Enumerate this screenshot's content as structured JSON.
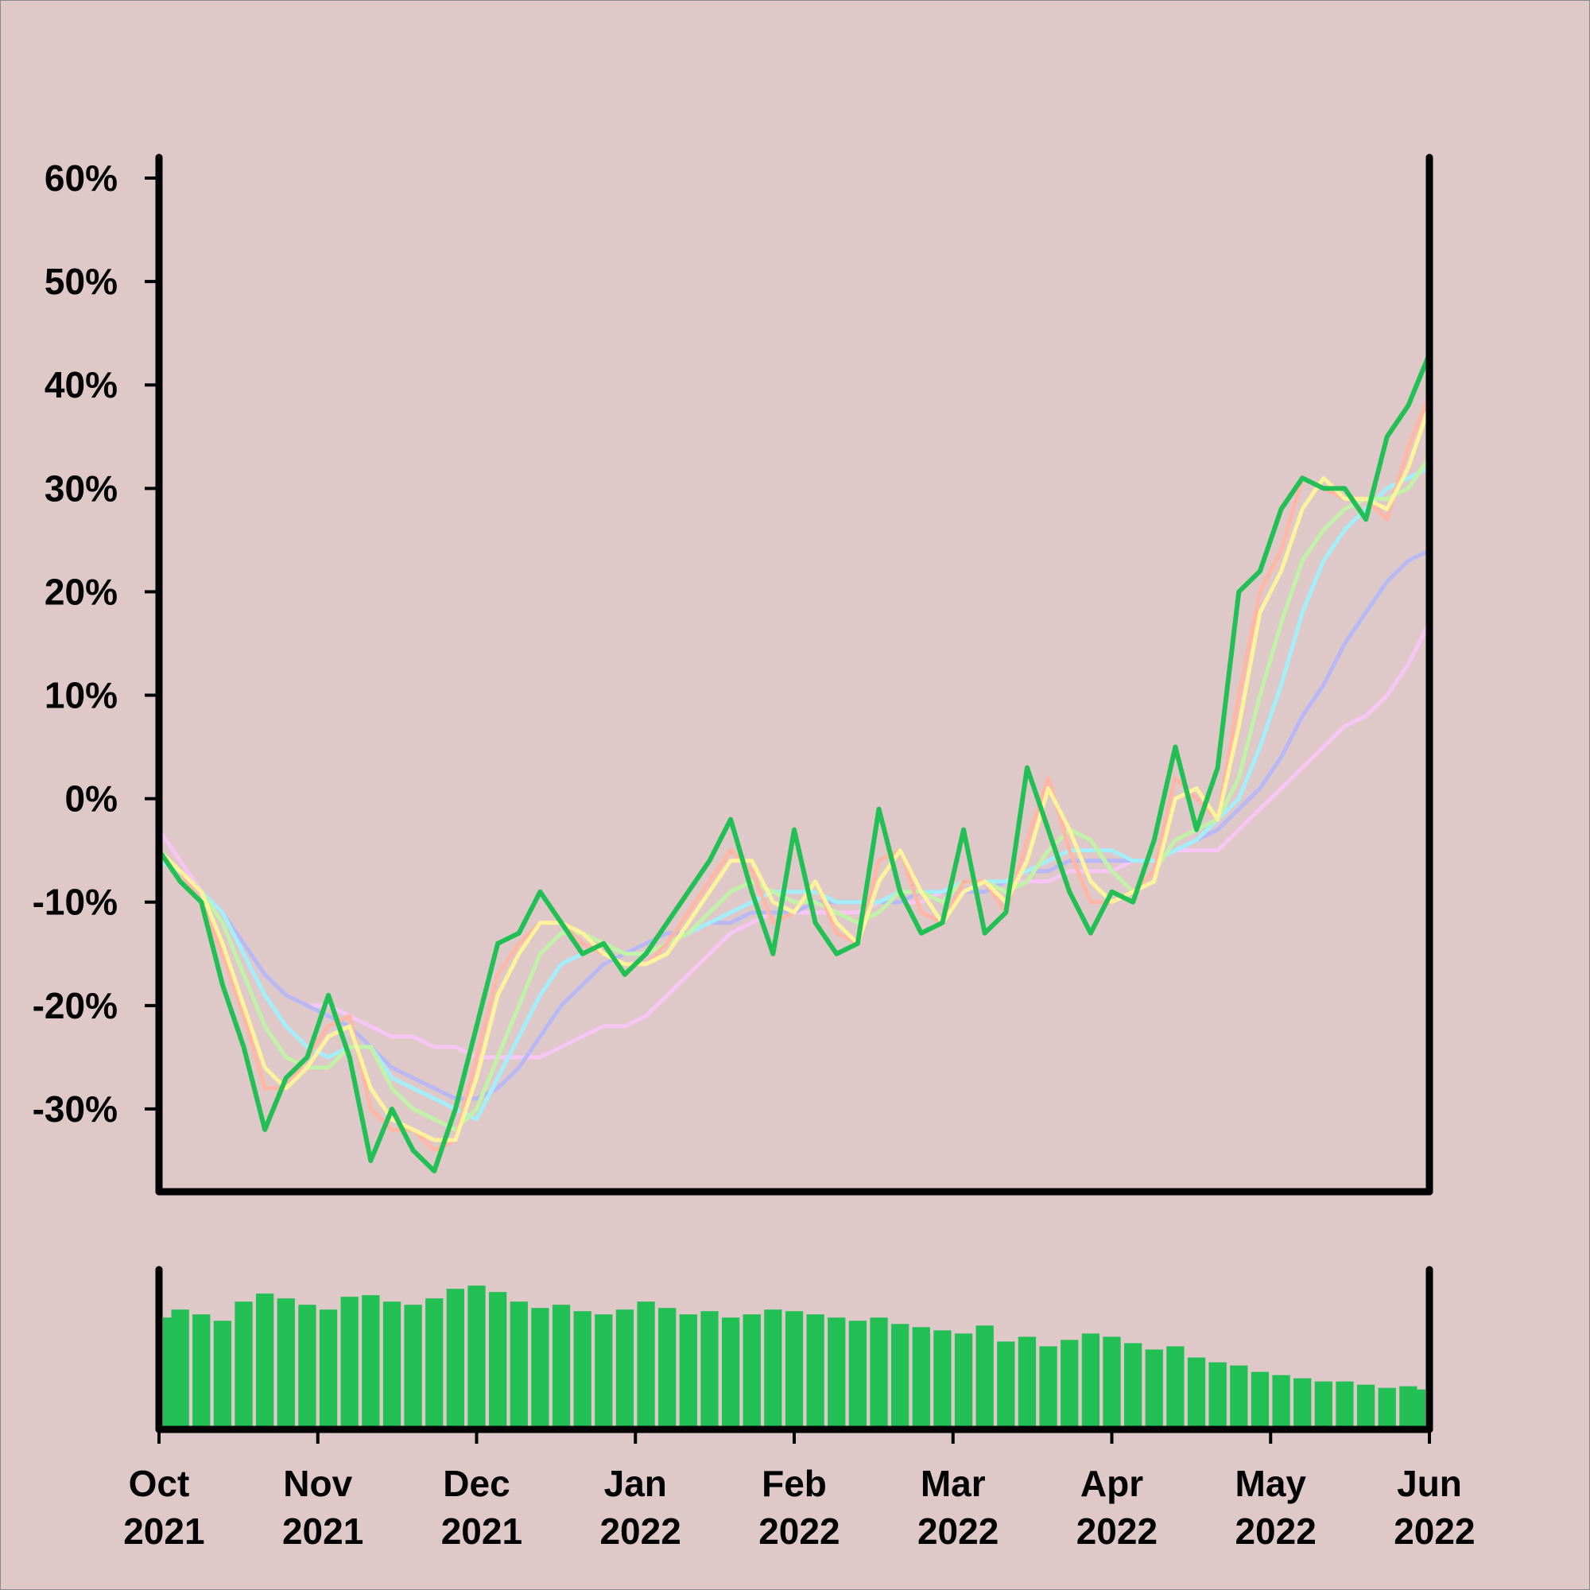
{
  "chart_data": [
    {
      "type": "line",
      "x": [
        0,
        1,
        2,
        3,
        4,
        5,
        6,
        7,
        8,
        9,
        10,
        11,
        12,
        13,
        14,
        15,
        16,
        17,
        18,
        19,
        20,
        21,
        22,
        23,
        24,
        25,
        26,
        27,
        28,
        29,
        30,
        31,
        32,
        33,
        34,
        35,
        36,
        37,
        38,
        39,
        40,
        41,
        42,
        43,
        44,
        45,
        46,
        47,
        48,
        49,
        50,
        51,
        52,
        53,
        54,
        55,
        56,
        57,
        58,
        59,
        60
      ],
      "xlim": [
        0,
        60
      ],
      "ylim": [
        -38,
        62
      ],
      "yticks": [
        {
          "value": -30,
          "label": "-30%"
        },
        {
          "value": -20,
          "label": "-20%"
        },
        {
          "value": -10,
          "label": "-10%"
        },
        {
          "value": 0,
          "label": "0%"
        },
        {
          "value": 10,
          "label": "10%"
        },
        {
          "value": 20,
          "label": "20%"
        },
        {
          "value": 30,
          "label": "30%"
        },
        {
          "value": 40,
          "label": "40%"
        },
        {
          "value": 50,
          "label": "50%"
        },
        {
          "value": 60,
          "label": "60%"
        }
      ],
      "series": [
        {
          "color": "#f7c6f5",
          "values": [
            -3,
            -6,
            -9,
            -11,
            -14,
            -17,
            -19,
            -20,
            -20,
            -21,
            -22,
            -23,
            -23,
            -24,
            -24,
            -25,
            -25,
            -25,
            -25,
            -24,
            -23,
            -22,
            -22,
            -21,
            -19,
            -17,
            -15,
            -13,
            -12,
            -11,
            -11,
            -11,
            -11,
            -11,
            -10,
            -10,
            -10,
            -9,
            -9,
            -9,
            -8,
            -8,
            -8,
            -7,
            -7,
            -7,
            -6,
            -6,
            -5,
            -5,
            -5,
            -3,
            -1,
            1,
            3,
            5,
            7,
            8,
            10,
            13,
            17
          ]
        },
        {
          "color": "#b8b8f4",
          "values": [
            -5,
            -7,
            -9,
            -11,
            -14,
            -17,
            -19,
            -20,
            -21,
            -22,
            -24,
            -26,
            -27,
            -28,
            -29,
            -29,
            -28,
            -26,
            -23,
            -20,
            -18,
            -16,
            -15,
            -14,
            -13,
            -13,
            -12,
            -12,
            -11,
            -11,
            -11,
            -10,
            -10,
            -10,
            -10,
            -10,
            -9,
            -9,
            -9,
            -9,
            -8,
            -7,
            -7,
            -6,
            -6,
            -6,
            -6,
            -6,
            -5,
            -4,
            -3,
            -1,
            1,
            4,
            8,
            11,
            15,
            18,
            21,
            23,
            24
          ]
        },
        {
          "color": "#a4eefa",
          "values": [
            -6,
            -7,
            -9,
            -11,
            -15,
            -19,
            -22,
            -24,
            -25,
            -24,
            -24,
            -27,
            -28,
            -29,
            -30,
            -31,
            -27,
            -23,
            -19,
            -16,
            -15,
            -14,
            -15,
            -15,
            -14,
            -13,
            -12,
            -11,
            -10,
            -9,
            -9,
            -9,
            -10,
            -10,
            -10,
            -9,
            -9,
            -9,
            -8,
            -8,
            -8,
            -7,
            -6,
            -5,
            -5,
            -5,
            -6,
            -6,
            -5,
            -4,
            -2,
            0,
            5,
            11,
            18,
            23,
            26,
            28,
            30,
            31,
            32
          ]
        },
        {
          "color": "#c2f2a8",
          "values": [
            -5,
            -7,
            -9,
            -12,
            -17,
            -22,
            -25,
            -26,
            -26,
            -24,
            -24,
            -28,
            -30,
            -31,
            -32,
            -30,
            -25,
            -20,
            -15,
            -13,
            -13,
            -14,
            -15,
            -15,
            -14,
            -13,
            -11,
            -9,
            -8,
            -9,
            -10,
            -10,
            -11,
            -12,
            -11,
            -9,
            -9,
            -10,
            -8,
            -8,
            -9,
            -8,
            -5,
            -3,
            -4,
            -7,
            -9,
            -7,
            -4,
            -3,
            -2,
            2,
            10,
            17,
            23,
            26,
            28,
            29,
            29,
            30,
            33
          ]
        },
        {
          "color": "#ffb6a4",
          "values": [
            -5,
            -7,
            -10,
            -15,
            -21,
            -28,
            -28,
            -25,
            -22,
            -21,
            -30,
            -32,
            -32,
            -34,
            -33,
            -25,
            -17,
            -14,
            -12,
            -12,
            -14,
            -15,
            -16,
            -16,
            -14,
            -11,
            -8,
            -5,
            -7,
            -12,
            -11,
            -8,
            -13,
            -14,
            -6,
            -5,
            -11,
            -12,
            -8,
            -8,
            -11,
            -4,
            2,
            -5,
            -10,
            -10,
            -9,
            -7,
            2,
            0,
            -2,
            10,
            20,
            24,
            31,
            30,
            29,
            29,
            27,
            34,
            39
          ]
        },
        {
          "color": "#fdf39c",
          "values": [
            -5,
            -7,
            -9,
            -14,
            -20,
            -26,
            -28,
            -26,
            -23,
            -22,
            -28,
            -31,
            -32,
            -33,
            -33,
            -27,
            -19,
            -15,
            -12,
            -12,
            -13,
            -15,
            -16,
            -16,
            -15,
            -12,
            -9,
            -6,
            -6,
            -10,
            -11,
            -8,
            -12,
            -14,
            -8,
            -5,
            -9,
            -12,
            -9,
            -8,
            -10,
            -6,
            1,
            -3,
            -8,
            -10,
            -9,
            -8,
            0,
            1,
            -2,
            7,
            18,
            22,
            28,
            31,
            29,
            29,
            28,
            32,
            38
          ]
        },
        {
          "color": "#22bf55",
          "values": [
            -5,
            -8,
            -10,
            -18,
            -24,
            -32,
            -27,
            -25,
            -19,
            -25,
            -35,
            -30,
            -34,
            -36,
            -30,
            -22,
            -14,
            -13,
            -9,
            -12,
            -15,
            -14,
            -17,
            -15,
            -12,
            -9,
            -6,
            -2,
            -9,
            -15,
            -3,
            -12,
            -15,
            -14,
            -1,
            -9,
            -13,
            -12,
            -3,
            -13,
            -11,
            3,
            -3,
            -9,
            -13,
            -9,
            -10,
            -4,
            5,
            -3,
            3,
            20,
            22,
            28,
            31,
            30,
            30,
            27,
            35,
            38,
            43
          ]
        }
      ]
    },
    {
      "type": "bar",
      "x": [
        0,
        1,
        2,
        3,
        4,
        5,
        6,
        7,
        8,
        9,
        10,
        11,
        12,
        13,
        14,
        15,
        16,
        17,
        18,
        19,
        20,
        21,
        22,
        23,
        24,
        25,
        26,
        27,
        28,
        29,
        30,
        31,
        32,
        33,
        34,
        35,
        36,
        37,
        38,
        39,
        40,
        41,
        42,
        43,
        44,
        45,
        46,
        47,
        48,
        49,
        50,
        51,
        52,
        53,
        54,
        55,
        56,
        57,
        58,
        59,
        60
      ],
      "xlim": [
        0,
        60
      ],
      "xticks": [
        {
          "value": 0,
          "label": "Oct 2021"
        },
        {
          "value": 7.5,
          "label": "Nov 2021"
        },
        {
          "value": 15,
          "label": "Dec 2021"
        },
        {
          "value": 22.5,
          "label": "Jan 2022"
        },
        {
          "value": 30,
          "label": "Feb 2022"
        },
        {
          "value": 37.5,
          "label": "Mar 2022"
        },
        {
          "value": 45,
          "label": "Apr 2022"
        },
        {
          "value": 52.5,
          "label": "May 2022"
        },
        {
          "value": 60,
          "label": "Jun 2022"
        }
      ],
      "ylim": [
        0,
        100
      ],
      "color": "#22bf55",
      "values": [
        70,
        75,
        72,
        68,
        80,
        85,
        82,
        78,
        75,
        83,
        84,
        80,
        78,
        82,
        88,
        90,
        86,
        80,
        76,
        78,
        74,
        72,
        75,
        80,
        76,
        72,
        74,
        70,
        72,
        75,
        74,
        72,
        70,
        68,
        70,
        66,
        64,
        62,
        60,
        65,
        55,
        58,
        52,
        56,
        60,
        58,
        54,
        50,
        52,
        45,
        42,
        40,
        36,
        34,
        32,
        30,
        30,
        28,
        26,
        27,
        25
      ]
    }
  ]
}
